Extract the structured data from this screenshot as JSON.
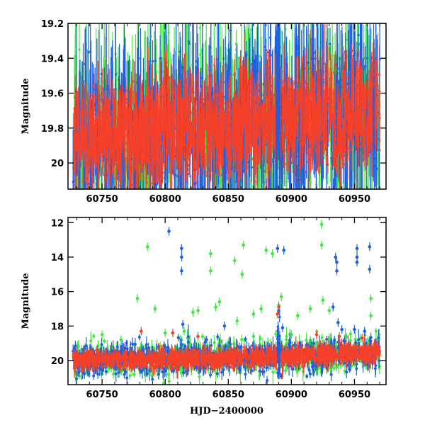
{
  "chart_data": [
    {
      "type": "scatter",
      "panel": "top",
      "xlabel": "",
      "ylabel": "Magnitude",
      "xlim": [
        60723,
        60975
      ],
      "ylim": [
        20.15,
        19.2
      ],
      "y_inverted": true,
      "x_ticks": [
        60750,
        60800,
        60850,
        60900,
        60950
      ],
      "x_tick_labels": [
        "60750",
        "60800",
        "60850",
        "60900",
        "60950"
      ],
      "y_ticks": [
        19.2,
        19.4,
        19.6,
        19.8,
        20.0
      ],
      "y_tick_labels": [
        "19.2",
        "19.4",
        "19.6",
        "19.8",
        "20"
      ],
      "grid": false,
      "legend": "none",
      "colors": {
        "green": "#3fe83f",
        "blue": "#1f5fe0",
        "red": "#f5402a"
      },
      "series_summary": [
        {
          "color": "green",
          "mag_range": [
            19.2,
            20.15
          ],
          "typical_mag": 19.75
        },
        {
          "color": "blue",
          "mag_range": [
            19.2,
            20.15
          ],
          "typical_mag": 19.8
        },
        {
          "color": "red",
          "mag_range": [
            19.35,
            20.15
          ],
          "typical_mag": 19.85
        }
      ],
      "x_range_data": [
        60727,
        60970
      ]
    },
    {
      "type": "scatter",
      "panel": "bottom",
      "xlabel": "HJD−2400000",
      "ylabel": "Magnitude",
      "xlim": [
        60723,
        60975
      ],
      "ylim": [
        21.4,
        11.7
      ],
      "y_inverted": true,
      "x_ticks": [
        60750,
        60800,
        60850,
        60900,
        60950
      ],
      "x_tick_labels": [
        "60750",
        "60800",
        "60850",
        "60900",
        "60950"
      ],
      "y_ticks": [
        12,
        14,
        16,
        18,
        20
      ],
      "y_tick_labels": [
        "12",
        "14",
        "16",
        "18",
        "20"
      ],
      "grid": false,
      "legend": "none",
      "baseline": [
        [
          60727,
          20.0
        ],
        [
          60800,
          19.95
        ],
        [
          60850,
          19.85
        ],
        [
          60900,
          19.75
        ],
        [
          60950,
          19.65
        ],
        [
          60970,
          19.5
        ]
      ],
      "outliers": {
        "blue": [
          [
            60803,
            12.5
          ],
          [
            60813,
            13.5
          ],
          [
            60813,
            14.0
          ],
          [
            60813,
            14.8
          ],
          [
            60889,
            13.5
          ],
          [
            60894,
            13.6
          ],
          [
            60935,
            14.0
          ],
          [
            60936,
            14.3
          ],
          [
            60936,
            14.8
          ],
          [
            60952,
            13.5
          ],
          [
            60952,
            14.0
          ],
          [
            60952,
            14.3
          ],
          [
            60962,
            13.4
          ],
          [
            60962,
            14.7
          ],
          [
            60814,
            17.9
          ],
          [
            60847,
            18.0
          ],
          [
            60933,
            16.9
          ],
          [
            60937,
            17.8
          ],
          [
            60940,
            18.2
          ],
          [
            60950,
            18.2
          ],
          [
            60958,
            18.3
          ],
          [
            60890,
            17.1
          ],
          [
            60893,
            18.1
          ]
        ],
        "green": [
          [
            60786,
            13.4
          ],
          [
            60836,
            13.8
          ],
          [
            60836,
            14.8
          ],
          [
            60855,
            14.2
          ],
          [
            60862,
            13.3
          ],
          [
            60861,
            15.0
          ],
          [
            60880,
            13.6
          ],
          [
            60885,
            13.8
          ],
          [
            60924,
            12.1
          ],
          [
            60924,
            13.3
          ],
          [
            60778,
            16.4
          ],
          [
            60792,
            17.0
          ],
          [
            60822,
            17.2
          ],
          [
            60826,
            17.1
          ],
          [
            60840,
            16.9
          ],
          [
            60843,
            16.6
          ],
          [
            60857,
            17.7
          ],
          [
            60870,
            17.3
          ],
          [
            60876,
            17.0
          ],
          [
            60890,
            16.8
          ],
          [
            60892,
            16.3
          ],
          [
            60905,
            17.4
          ],
          [
            60915,
            17.0
          ],
          [
            60925,
            16.5
          ],
          [
            60930,
            17.1
          ],
          [
            60963,
            16.4
          ],
          [
            60963,
            17.4
          ],
          [
            60750,
            18.5
          ],
          [
            60765,
            18.8
          ],
          [
            60800,
            18.4
          ],
          [
            60815,
            18.3
          ],
          [
            60870,
            18.6
          ],
          [
            60900,
            18.5
          ],
          [
            60930,
            18.7
          ]
        ],
        "red": [
          [
            60781,
            18.3
          ],
          [
            60806,
            18.4
          ],
          [
            60826,
            18.6
          ],
          [
            60889,
            17.3
          ],
          [
            60890,
            16.9
          ],
          [
            60920,
            18.5
          ],
          [
            60938,
            18.6
          ],
          [
            60956,
            18.7
          ]
        ]
      },
      "colors": {
        "green": "#3fe83f",
        "blue": "#1f5fe0",
        "red": "#f5402a"
      }
    }
  ]
}
